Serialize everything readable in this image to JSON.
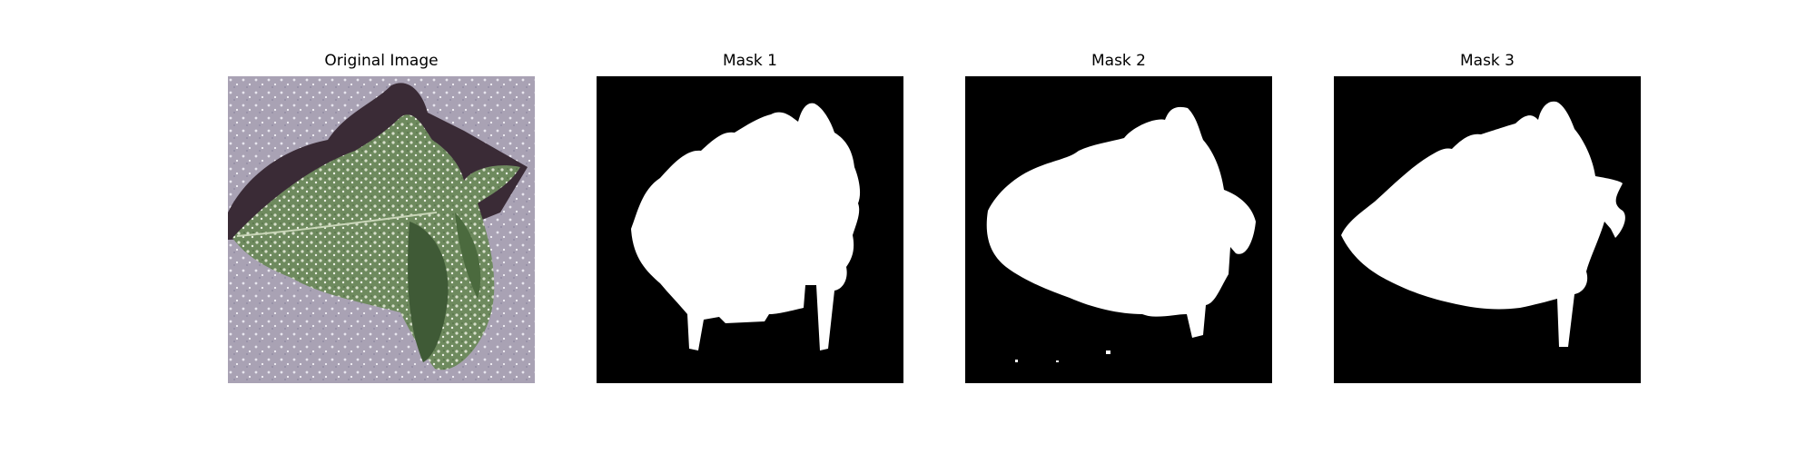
{
  "figure": {
    "panels": [
      {
        "title": "Original Image",
        "kind": "photo",
        "content": "leaf on gray background"
      },
      {
        "title": "Mask 1",
        "kind": "mask"
      },
      {
        "title": "Mask 2",
        "kind": "mask"
      },
      {
        "title": "Mask 3",
        "kind": "mask"
      }
    ]
  },
  "colors": {
    "photo_background": "#a9a2b4",
    "leaf_green": "#6e8a5e",
    "leaf_dark": "#3f5a36",
    "shadow": "#3a2b36",
    "mask_background": "#000000",
    "mask_foreground": "#ffffff"
  }
}
